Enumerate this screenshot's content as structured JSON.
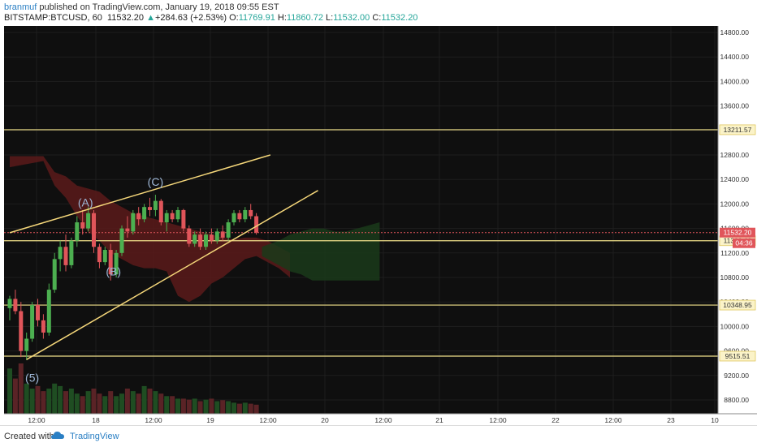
{
  "header": {
    "author": "branmuf",
    "published": "published on TradingView.com, January 19, 2018 09:55 EST",
    "symbol": "BITSTAMP:BTCUSD, 60",
    "last": "11532.20",
    "change": "+284.63 (+2.53%)",
    "o_label": "O:",
    "o_value": "11769.91",
    "h_label": "H:",
    "h_value": "11860.72",
    "l_label": "L:",
    "l_value": "11532.00",
    "c_label": "C:",
    "c_value": "11532.20"
  },
  "footer": {
    "created_with": "Created with",
    "brand": "TradingView"
  },
  "colors": {
    "background": "#0f0f0f",
    "up": "#4caf50",
    "down": "#e0555a",
    "level_line": "#f0e08a",
    "trendline": "#f5d77a",
    "cloud_bear": "#5a1a1a",
    "cloud_bull": "#1a3a1a",
    "grid": "#1e1e1e"
  },
  "chart_data": {
    "type": "candlestick",
    "ylim": [
      8500,
      15000
    ],
    "y_ticks": [
      "14800.00",
      "14400.00",
      "14000.00",
      "13600.00",
      "13200.00",
      "12800.00",
      "12400.00",
      "12000.00",
      "11600.00",
      "11200.00",
      "10800.00",
      "10400.00",
      "10000.00",
      "9600.00",
      "9200.00",
      "8800.00"
    ],
    "x_ticks": [
      "12:00",
      "18",
      "12:00",
      "19",
      "12:00",
      "20",
      "12:00",
      "21",
      "12:00",
      "22",
      "12:00",
      "23",
      "10"
    ],
    "last_price": {
      "label": "11532.20",
      "countdown": "04:36",
      "value": 11532.2
    },
    "levels": [
      {
        "value": 13211.57,
        "label": "13211.57"
      },
      {
        "value": 11399.63,
        "label": "11399.63"
      },
      {
        "value": 10348.95,
        "label": "10348.95"
      },
      {
        "value": 9515.51,
        "label": "9515.51"
      }
    ],
    "wave_labels": [
      {
        "text": "(A)",
        "x": 13.5,
        "y": 11960
      },
      {
        "text": "(B)",
        "x": 18.5,
        "y": 10830
      },
      {
        "text": "(C)",
        "x": 26.0,
        "y": 12300
      },
      {
        "text": "(5)",
        "x": 4.0,
        "y": 9100
      }
    ],
    "trendlines": [
      {
        "x1": 0,
        "y1": 11530,
        "x2": 46.5,
        "y2": 12800
      },
      {
        "x1": 3,
        "y1": 9460,
        "x2": 55,
        "y2": 12220
      }
    ],
    "candles": [
      [
        10300,
        10500,
        10100,
        10450
      ],
      [
        10450,
        10600,
        10200,
        10250
      ],
      [
        10250,
        10400,
        9500,
        9600
      ],
      [
        9600,
        9900,
        9450,
        9800
      ],
      [
        9800,
        10400,
        9750,
        10350
      ],
      [
        10350,
        10450,
        10000,
        10100
      ],
      [
        10100,
        10200,
        9800,
        9900
      ],
      [
        9900,
        10700,
        9850,
        10600
      ],
      [
        10600,
        11200,
        10550,
        11100
      ],
      [
        11100,
        11400,
        10900,
        11300
      ],
      [
        11300,
        11500,
        10900,
        11000
      ],
      [
        11000,
        11450,
        10950,
        11400
      ],
      [
        11400,
        11800,
        11300,
        11700
      ],
      [
        11700,
        11900,
        11500,
        11600
      ],
      [
        11600,
        11950,
        11550,
        11850
      ],
      [
        11850,
        11900,
        11200,
        11300
      ],
      [
        11300,
        11350,
        10950,
        11050
      ],
      [
        11050,
        11300,
        11000,
        11250
      ],
      [
        11250,
        11350,
        10750,
        10850
      ],
      [
        10850,
        11250,
        10800,
        11200
      ],
      [
        11200,
        11650,
        11150,
        11600
      ],
      [
        11600,
        11800,
        11450,
        11550
      ],
      [
        11550,
        11900,
        11500,
        11850
      ],
      [
        11850,
        11950,
        11650,
        11750
      ],
      [
        11750,
        12000,
        11700,
        11950
      ],
      [
        11950,
        12100,
        11800,
        11900
      ],
      [
        11900,
        12150,
        11800,
        12050
      ],
      [
        12050,
        12080,
        11650,
        11700
      ],
      [
        11700,
        11900,
        11550,
        11850
      ],
      [
        11850,
        11900,
        11700,
        11750
      ],
      [
        11750,
        11950,
        11700,
        11900
      ],
      [
        11900,
        11920,
        11550,
        11600
      ],
      [
        11600,
        11650,
        11300,
        11350
      ],
      [
        11350,
        11550,
        11300,
        11500
      ],
      [
        11500,
        11600,
        11250,
        11300
      ],
      [
        11300,
        11550,
        11250,
        11500
      ],
      [
        11500,
        11600,
        11350,
        11400
      ],
      [
        11400,
        11600,
        11350,
        11550
      ],
      [
        11550,
        11650,
        11400,
        11450
      ],
      [
        11450,
        11750,
        11400,
        11700
      ],
      [
        11700,
        11900,
        11650,
        11850
      ],
      [
        11850,
        11900,
        11700,
        11750
      ],
      [
        11750,
        11950,
        11700,
        11900
      ],
      [
        11900,
        12000,
        11750,
        11800
      ],
      [
        11800,
        11850,
        11500,
        11532
      ]
    ],
    "cloud_bear": {
      "x": [
        0,
        6,
        8,
        10,
        12,
        14,
        16,
        18,
        20,
        22,
        24,
        26,
        28,
        30,
        32,
        34,
        36,
        38,
        40,
        42,
        44,
        46,
        48,
        50
      ],
      "top": [
        12780,
        12780,
        12520,
        12450,
        12300,
        12250,
        12200,
        12050,
        11950,
        11850,
        11800,
        11750,
        11700,
        11650,
        11600,
        11550,
        11500,
        11450,
        11420,
        11450,
        11450,
        11400,
        11300,
        11200
      ],
      "bottom": [
        12600,
        12700,
        12300,
        12100,
        11800,
        11550,
        11400,
        11200,
        11100,
        11000,
        10950,
        10950,
        10900,
        10500,
        10400,
        10500,
        10700,
        10800,
        10950,
        11100,
        11150,
        11050,
        10950,
        10800
      ]
    },
    "cloud_bull": {
      "x": [
        45,
        48,
        50,
        52,
        54,
        56,
        58,
        60,
        62,
        64,
        66
      ],
      "top": [
        11300,
        11400,
        11500,
        11550,
        11600,
        11600,
        11550,
        11550,
        11600,
        11650,
        11700
      ],
      "bottom": [
        11150,
        11000,
        10900,
        10850,
        10750,
        10750,
        10750,
        10750,
        10750,
        10750,
        10750
      ]
    },
    "volume": [
      0.9,
      0.7,
      1.0,
      0.6,
      0.5,
      0.55,
      0.45,
      0.5,
      0.6,
      0.55,
      0.45,
      0.5,
      0.4,
      0.35,
      0.45,
      0.5,
      0.4,
      0.35,
      0.45,
      0.35,
      0.4,
      0.5,
      0.45,
      0.4,
      0.55,
      0.5,
      0.45,
      0.4,
      0.35,
      0.35,
      0.3,
      0.3,
      0.28,
      0.3,
      0.25,
      0.28,
      0.3,
      0.25,
      0.27,
      0.25,
      0.22,
      0.2,
      0.22,
      0.2,
      0.18
    ]
  }
}
